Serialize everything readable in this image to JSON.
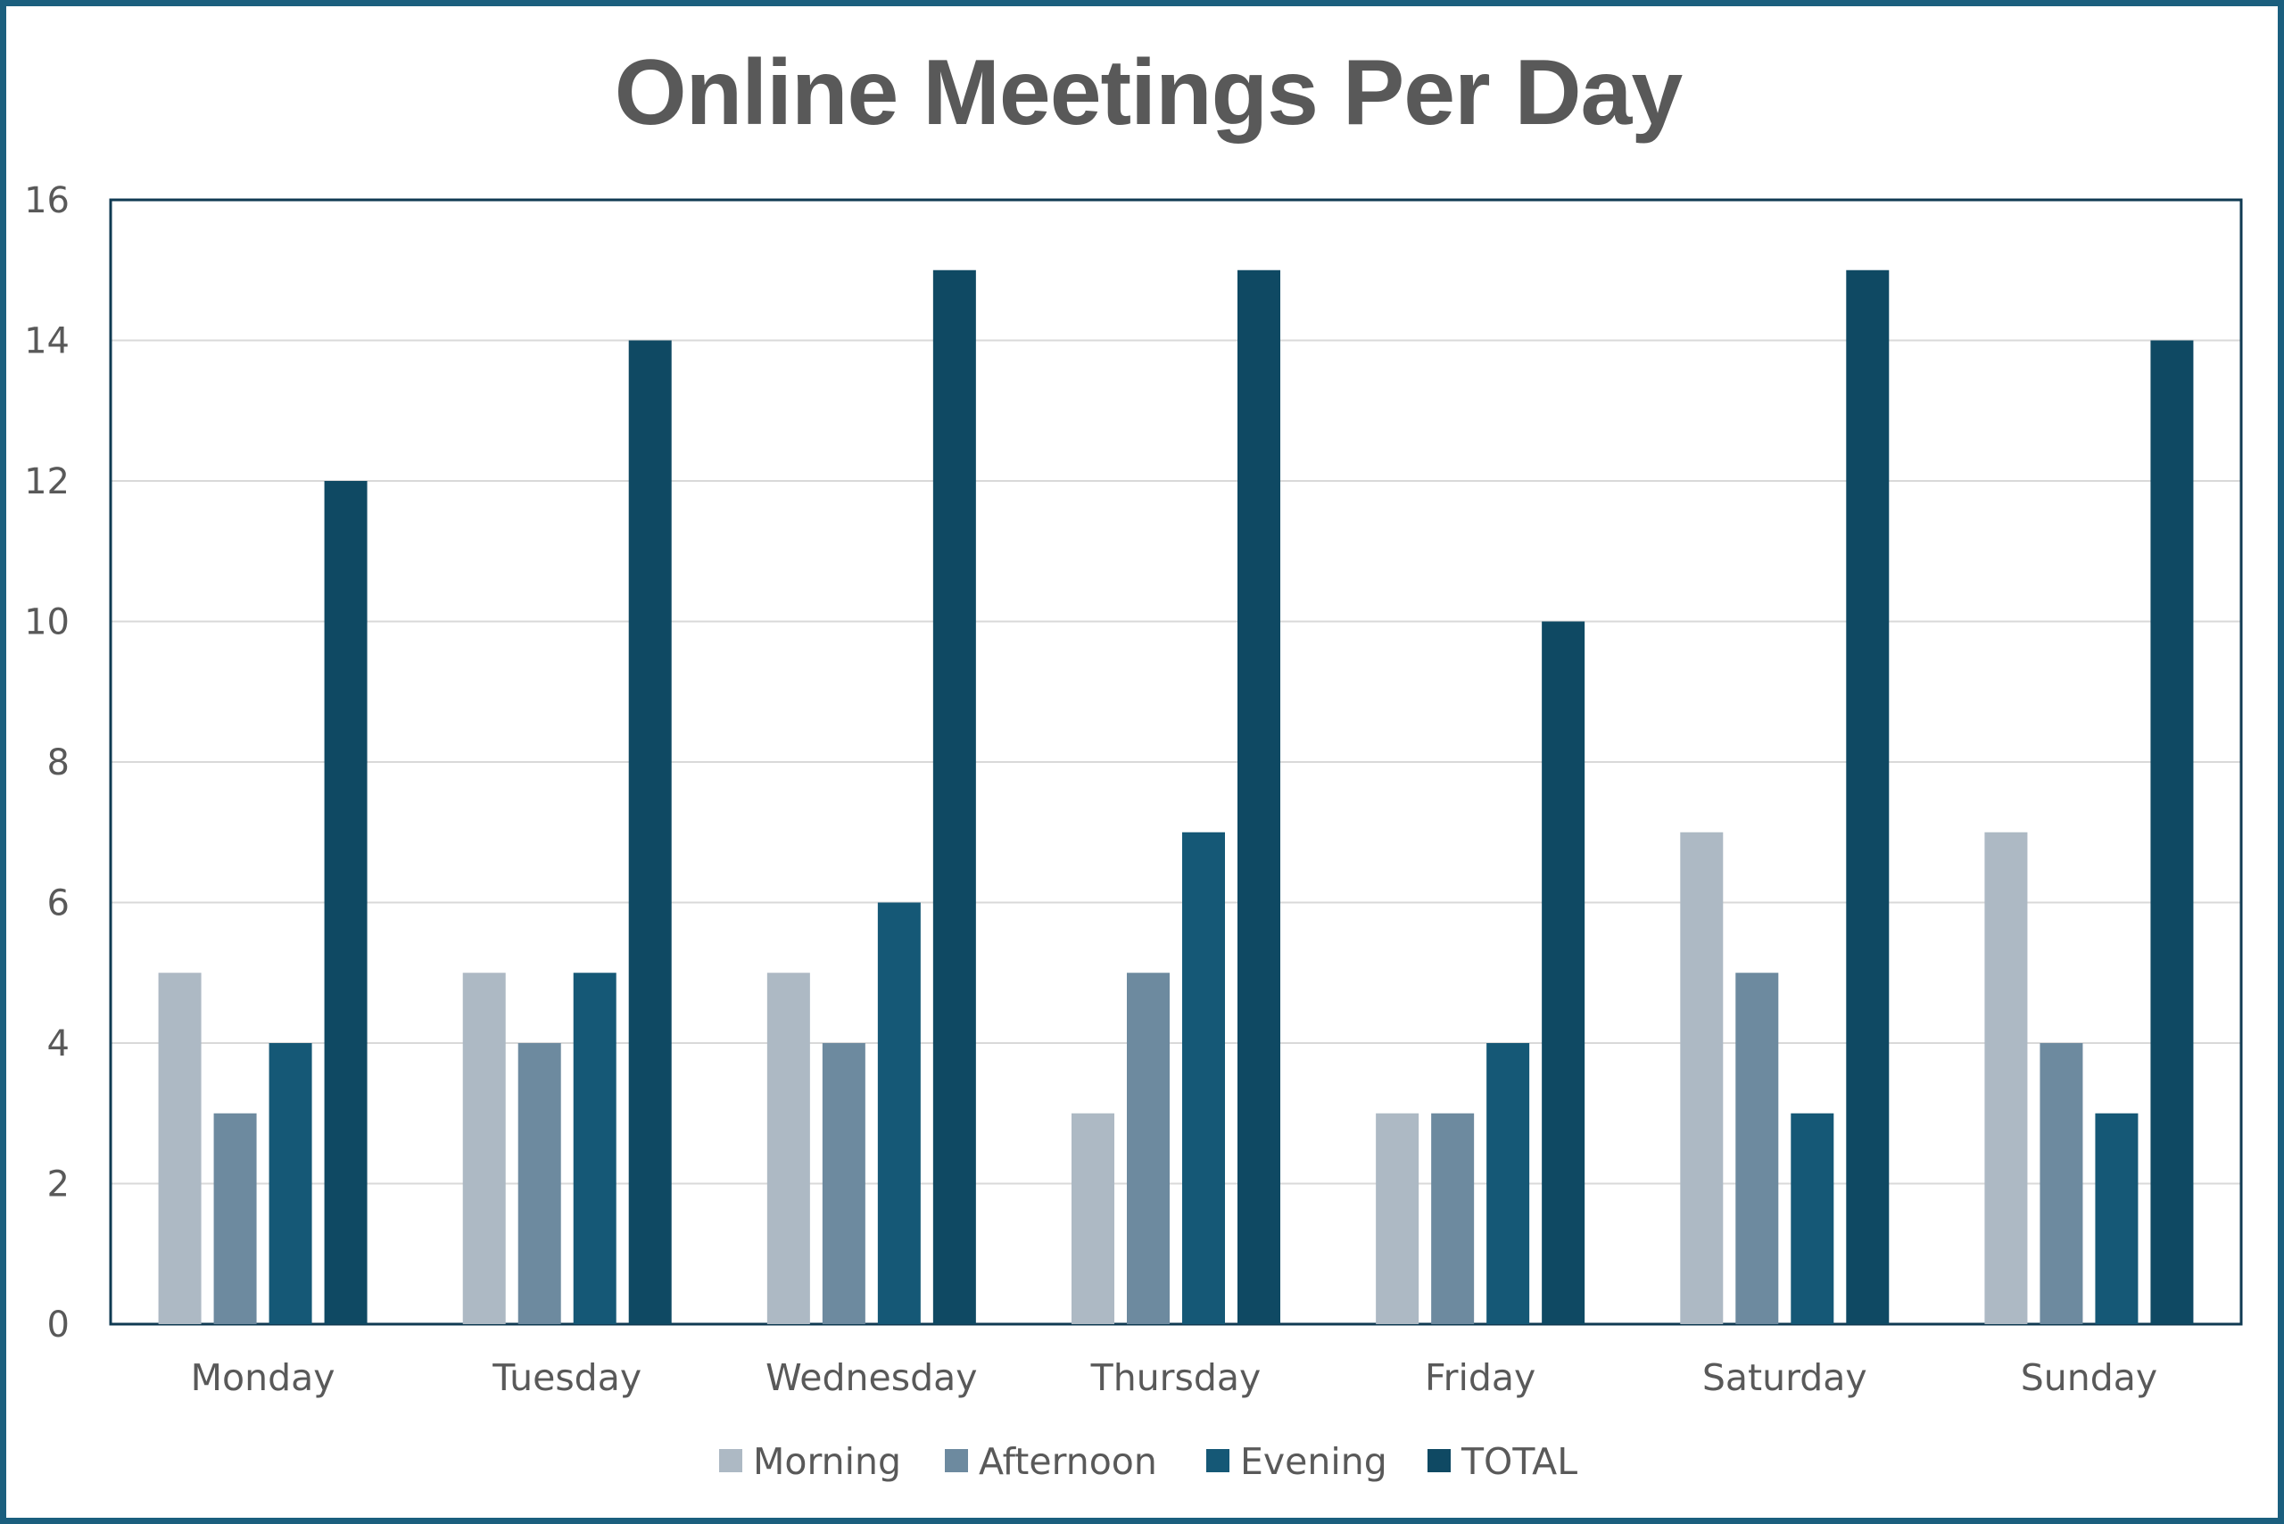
{
  "chart_data": {
    "type": "bar",
    "title": "Online Meetings Per Day",
    "xlabel": "",
    "ylabel": "",
    "ylim": [
      0,
      16
    ],
    "yticks": [
      0,
      2,
      4,
      6,
      8,
      10,
      12,
      14,
      16
    ],
    "grid": true,
    "legend_position": "bottom",
    "categories": [
      "Monday",
      "Tuesday",
      "Wednesday",
      "Thursday",
      "Friday",
      "Saturday",
      "Sunday"
    ],
    "series": [
      {
        "name": "Morning",
        "color": "#adb9c4",
        "values": [
          5,
          5,
          5,
          3,
          3,
          7,
          7
        ]
      },
      {
        "name": "Afternoon",
        "color": "#6d8a9f",
        "values": [
          3,
          4,
          4,
          5,
          3,
          5,
          4
        ]
      },
      {
        "name": "Evening",
        "color": "#155876",
        "values": [
          4,
          5,
          6,
          7,
          4,
          3,
          3
        ]
      },
      {
        "name": "TOTAL",
        "color": "#0f4963",
        "values": [
          12,
          14,
          15,
          15,
          10,
          15,
          14
        ]
      }
    ]
  }
}
